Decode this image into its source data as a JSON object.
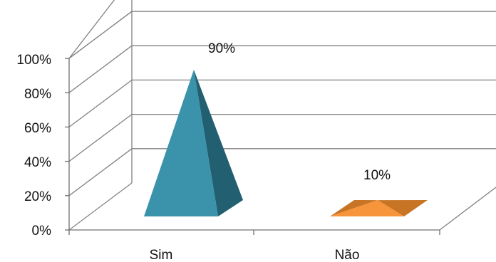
{
  "chart_data": {
    "type": "bar",
    "style": "3d-pyramid",
    "categories": [
      "Sim",
      "Não"
    ],
    "values": [
      90,
      10
    ],
    "data_labels": [
      "90%",
      "10%"
    ],
    "y_ticks": [
      "0%",
      "20%",
      "40%",
      "60%",
      "80%",
      "100%"
    ],
    "ylim": [
      0,
      100
    ],
    "grid": true,
    "legend": "none",
    "colors": {
      "Sim": {
        "front": "#3a93ab",
        "side": "#225f70"
      },
      "Não": {
        "front": "#f7953c",
        "side": "#c87425"
      },
      "grid": "#808080",
      "axis": "#707070"
    }
  }
}
